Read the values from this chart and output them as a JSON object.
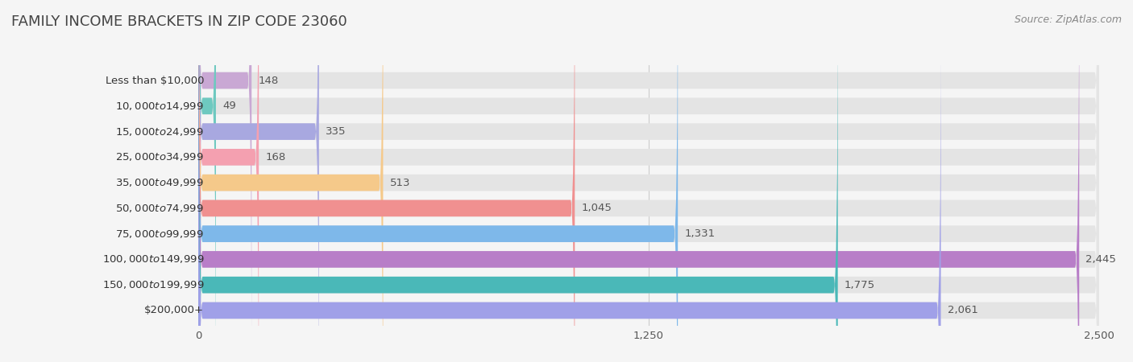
{
  "title": "FAMILY INCOME BRACKETS IN ZIP CODE 23060",
  "source": "Source: ZipAtlas.com",
  "categories": [
    "Less than $10,000",
    "$10,000 to $14,999",
    "$15,000 to $24,999",
    "$25,000 to $34,999",
    "$35,000 to $49,999",
    "$50,000 to $74,999",
    "$75,000 to $99,999",
    "$100,000 to $149,999",
    "$150,000 to $199,999",
    "$200,000+"
  ],
  "values": [
    148,
    49,
    335,
    168,
    513,
    1045,
    1331,
    2445,
    1775,
    2061
  ],
  "bar_colors": [
    "#c9a8d4",
    "#6ec9c0",
    "#a8a8e0",
    "#f4a0b0",
    "#f5c98a",
    "#f09090",
    "#7eb8ea",
    "#b87ec8",
    "#4ab8b8",
    "#a0a0e8"
  ],
  "bg_color": "#f5f5f5",
  "bar_bg_color": "#e4e4e4",
  "xlim": [
    0,
    2500
  ],
  "xticks": [
    0,
    1250,
    2500
  ],
  "title_fontsize": 13,
  "label_fontsize": 9.5,
  "value_fontsize": 9.5,
  "source_fontsize": 9
}
